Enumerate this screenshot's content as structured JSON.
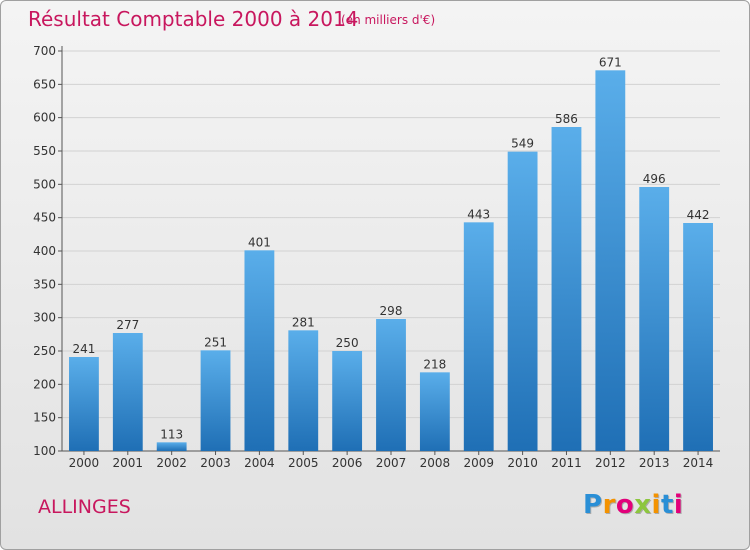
{
  "header": {
    "title": "Résultat Comptable 2000 à 2014",
    "subtitle": "(en milliers d'€)"
  },
  "footer": {
    "commune": "ALLINGES",
    "logo_letters": [
      "P",
      "r",
      "o",
      "x",
      "i",
      "t",
      "i"
    ],
    "logo_colors": [
      "#2a8fd6",
      "#f39200",
      "#e2007a",
      "#8dc63f",
      "#f39200",
      "#2a8fd6",
      "#e2007a"
    ]
  },
  "chart_data": {
    "type": "bar",
    "title": "Résultat Comptable 2000 à 2014",
    "categories": [
      "2000",
      "2001",
      "2002",
      "2003",
      "2004",
      "2005",
      "2006",
      "2007",
      "2008",
      "2009",
      "2010",
      "2011",
      "2012",
      "2013",
      "2014"
    ],
    "values": [
      241,
      277,
      113,
      251,
      401,
      281,
      250,
      298,
      218,
      443,
      549,
      586,
      671,
      496,
      442
    ],
    "ylim": [
      100,
      700
    ],
    "yticks": [
      100,
      150,
      200,
      250,
      300,
      350,
      400,
      450,
      500,
      550,
      600,
      650,
      700
    ],
    "grid": true,
    "bar_color_top": "#5aaeea",
    "bar_color_bottom": "#1f6fb5"
  }
}
